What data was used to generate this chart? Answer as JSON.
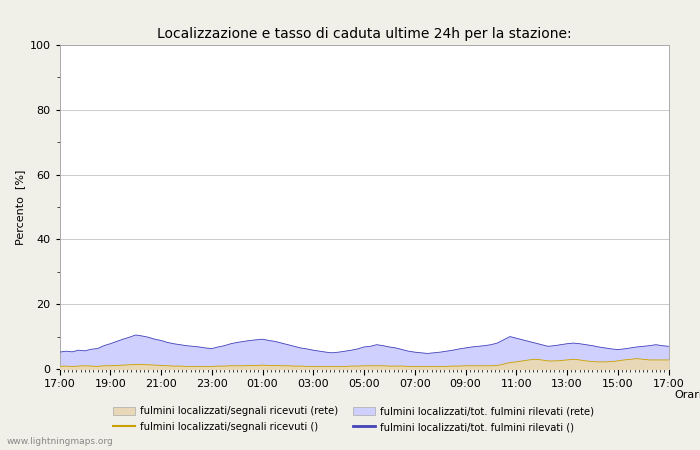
{
  "title": "Localizzazione e tasso di caduta ultime 24h per la stazione:",
  "xlabel": "Orario",
  "ylabel": "Percento  [%]",
  "ylim": [
    0,
    100
  ],
  "yticks": [
    0,
    20,
    40,
    60,
    80,
    100
  ],
  "yticks_minor": [
    10,
    30,
    50,
    70,
    90
  ],
  "x_labels": [
    "17:00",
    "19:00",
    "21:00",
    "23:00",
    "01:00",
    "03:00",
    "05:00",
    "07:00",
    "09:00",
    "11:00",
    "13:00",
    "15:00",
    "17:00"
  ],
  "n_points": 97,
  "fill_blue_color": "#d0d0ff",
  "fill_yellow_color": "#e8d8b8",
  "line_blue_color": "#4444bb",
  "line_yellow_color": "#c8a000",
  "background_color": "#ffffff",
  "fig_background_color": "#f0f0e8",
  "grid_color": "#cccccc",
  "title_fontsize": 10,
  "axis_fontsize": 8,
  "tick_fontsize": 8,
  "watermark": "www.lightningmaps.org",
  "legend_labels": [
    "fulmini localizzati/segnali ricevuti (rete)",
    "fulmini localizzati/segnali ricevuti ()",
    "fulmini localizzati/tot. fulmini rilevati (rete)",
    "fulmini localizzati/tot. fulmini rilevati ()"
  ],
  "blue_fill_data": [
    5.2,
    5.5,
    5.3,
    5.8,
    5.6,
    6.1,
    6.3,
    7.2,
    7.8,
    8.5,
    9.2,
    9.8,
    10.5,
    10.2,
    9.8,
    9.2,
    8.8,
    8.2,
    7.8,
    7.5,
    7.2,
    7.0,
    6.8,
    6.5,
    6.3,
    6.8,
    7.2,
    7.8,
    8.2,
    8.5,
    8.8,
    9.0,
    9.2,
    8.8,
    8.5,
    8.0,
    7.5,
    7.0,
    6.5,
    6.2,
    5.8,
    5.5,
    5.2,
    5.0,
    5.2,
    5.5,
    5.8,
    6.2,
    6.8,
    7.0,
    7.5,
    7.2,
    6.8,
    6.5,
    6.0,
    5.5,
    5.2,
    5.0,
    4.8,
    5.0,
    5.2,
    5.5,
    5.8,
    6.2,
    6.5,
    6.8,
    7.0,
    7.2,
    7.5,
    8.0,
    9.0,
    10.0,
    9.5,
    9.0,
    8.5,
    8.0,
    7.5,
    7.0,
    7.2,
    7.5,
    7.8,
    8.0,
    7.8,
    7.5,
    7.2,
    6.8,
    6.5,
    6.2,
    6.0,
    6.2,
    6.5,
    6.8,
    7.0,
    7.2,
    7.5,
    7.2,
    7.0
  ],
  "yellow_fill_data": [
    0.8,
    0.9,
    0.8,
    0.9,
    1.0,
    0.9,
    0.8,
    1.0,
    1.0,
    1.1,
    1.2,
    1.3,
    1.4,
    1.4,
    1.3,
    1.2,
    1.1,
    1.0,
    0.9,
    0.9,
    0.8,
    0.8,
    0.8,
    0.8,
    0.8,
    0.9,
    0.9,
    1.0,
    1.0,
    1.0,
    1.1,
    1.1,
    1.2,
    1.1,
    1.1,
    1.0,
    1.0,
    0.9,
    0.9,
    0.8,
    0.8,
    0.8,
    0.8,
    0.8,
    0.8,
    0.8,
    0.9,
    0.9,
    1.0,
    1.0,
    1.0,
    1.0,
    0.9,
    0.9,
    0.9,
    0.8,
    0.8,
    0.8,
    0.8,
    0.8,
    0.8,
    0.8,
    0.9,
    0.9,
    1.0,
    1.0,
    1.0,
    1.0,
    1.0,
    1.1,
    1.5,
    2.0,
    2.2,
    2.5,
    2.8,
    3.0,
    2.8,
    2.5,
    2.5,
    2.6,
    2.8,
    3.0,
    2.8,
    2.5,
    2.3,
    2.2,
    2.2,
    2.3,
    2.5,
    2.8,
    3.0,
    3.2,
    3.0,
    2.8,
    2.8,
    2.8,
    2.8
  ]
}
